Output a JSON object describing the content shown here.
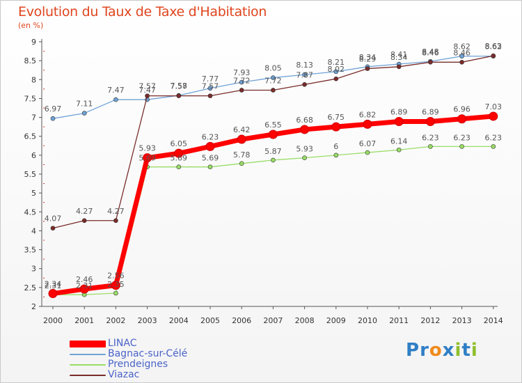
{
  "chart_data": {
    "type": "line",
    "title": "Evolution du Taux de Taxe d'Habitation",
    "subtitle": "(en %)",
    "categories": [
      "2000",
      "2001",
      "2002",
      "2003",
      "2004",
      "2005",
      "2006",
      "2007",
      "2008",
      "2009",
      "2010",
      "2011",
      "2012",
      "2013",
      "2014"
    ],
    "yticks": [
      "2",
      "2.5",
      "3",
      "3.5",
      "4",
      "4.5",
      "5",
      "5.5",
      "6",
      "6.5",
      "7",
      "7.5",
      "8",
      "8.5",
      "9"
    ],
    "ylim": [
      2,
      9
    ],
    "grid": false,
    "legend_position": "bottom-left",
    "series": [
      {
        "name": "LINAC",
        "color": "#ff0000",
        "values": [
          2.34,
          2.46,
          2.56,
          5.93,
          6.05,
          6.23,
          6.42,
          6.55,
          6.68,
          6.75,
          6.82,
          6.89,
          6.89,
          6.96,
          7.03
        ]
      },
      {
        "name": "Bagnac-sur-Célé",
        "color": "#6fa3d6",
        "values": [
          6.97,
          7.11,
          7.47,
          7.47,
          7.58,
          7.77,
          7.93,
          8.05,
          8.13,
          8.21,
          8.34,
          8.41,
          8.48,
          8.62,
          8.62
        ]
      },
      {
        "name": "Prendeignes",
        "color": "#99dd66",
        "values": [
          2.31,
          2.31,
          2.35,
          5.69,
          5.69,
          5.69,
          5.78,
          5.87,
          5.93,
          6.0,
          6.07,
          6.14,
          6.23,
          6.23,
          6.23
        ]
      },
      {
        "name": "Viazac",
        "color": "#7a2b2b",
        "values": [
          4.07,
          4.27,
          4.27,
          7.57,
          7.57,
          7.57,
          7.72,
          7.72,
          7.87,
          8.02,
          8.29,
          8.34,
          8.46,
          8.46,
          8.63
        ]
      }
    ],
    "data_labels": {
      "LINAC": [
        "2.34",
        "2.46",
        "2.56",
        "5.93",
        "6.05",
        "6.23",
        "6.42",
        "6.55",
        "6.68",
        "6.75",
        "6.82",
        "6.89",
        "6.89",
        "6.96",
        "7.03"
      ],
      "Bagnac-sur-Célé": [
        "6.97",
        "7.11",
        "7.47",
        "7.47",
        "7.58",
        "7.77",
        "7.93",
        "8.05",
        "8.13",
        "8.21",
        "8.34",
        "8.41",
        "8.48",
        "8.62",
        "8.62"
      ],
      "Prendeignes": [
        "2.31",
        "2.31",
        "2.35",
        "5.69",
        "5.69",
        "5.69",
        "5.78",
        "5.87",
        "5.93",
        "6",
        "6.07",
        "6.14",
        "6.23",
        "6.23",
        "6.23"
      ],
      "Viazac": [
        "4.07",
        "4.27",
        "4.27",
        "7.57",
        "7.57",
        "7.57",
        "7.72",
        "7.72",
        "7.87",
        "8.02",
        "8.29",
        "8.34",
        "8.46",
        "8.46",
        "8.63"
      ]
    }
  },
  "brand": {
    "text": "Proxiti",
    "colors": [
      "#2f7fc6",
      "#2f7fc6",
      "#f08a1c",
      "#2f7fc6",
      "#8fbf2e",
      "#2f7fc6",
      "#8fbf2e"
    ]
  }
}
